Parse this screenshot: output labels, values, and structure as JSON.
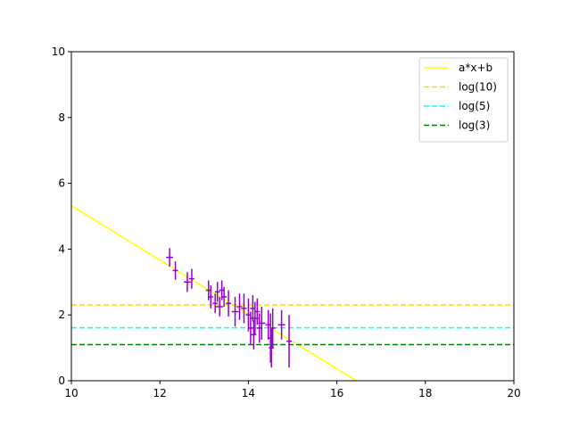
{
  "chart_data": {
    "type": "scatter",
    "title": "",
    "xlabel": "",
    "ylabel": "",
    "xlim": [
      10,
      20
    ],
    "ylim": [
      0,
      10
    ],
    "x_ticks": [
      10,
      12,
      14,
      16,
      18,
      20
    ],
    "y_ticks": [
      0,
      2,
      4,
      6,
      8,
      10
    ],
    "grid": false,
    "legend_position": "top-right",
    "series": [
      {
        "name": "a*x+b",
        "kind": "line",
        "style": "solid",
        "color": "#ffff00",
        "points": [
          [
            10,
            5.32
          ],
          [
            16.44,
            0
          ]
        ]
      },
      {
        "name": "log(10)",
        "kind": "hline",
        "style": "dashed",
        "color": "#ffd700",
        "y": 2.303
      },
      {
        "name": "log(5)",
        "kind": "hline",
        "style": "dashed",
        "color": "#00ffff",
        "y": 1.609
      },
      {
        "name": "log(3)",
        "kind": "hline",
        "style": "dashed",
        "color": "#008000",
        "y": 1.099
      }
    ],
    "errorbar_color": "#9400d3",
    "errorbar_points": [
      {
        "x": 12.22,
        "y": 3.75,
        "xerr": 0.08,
        "yerr": 0.28
      },
      {
        "x": 12.35,
        "y": 3.35,
        "xerr": 0.06,
        "yerr": 0.28
      },
      {
        "x": 12.62,
        "y": 3.0,
        "xerr": 0.08,
        "yerr": 0.3
      },
      {
        "x": 12.72,
        "y": 3.1,
        "xerr": 0.06,
        "yerr": 0.3
      },
      {
        "x": 13.1,
        "y": 2.75,
        "xerr": 0.06,
        "yerr": 0.3
      },
      {
        "x": 13.15,
        "y": 2.55,
        "xerr": 0.06,
        "yerr": 0.35
      },
      {
        "x": 13.25,
        "y": 2.35,
        "xerr": 0.06,
        "yerr": 0.3
      },
      {
        "x": 13.3,
        "y": 2.7,
        "xerr": 0.06,
        "yerr": 0.3
      },
      {
        "x": 13.35,
        "y": 2.25,
        "xerr": 0.08,
        "yerr": 0.3
      },
      {
        "x": 13.4,
        "y": 2.75,
        "xerr": 0.06,
        "yerr": 0.3
      },
      {
        "x": 13.45,
        "y": 2.55,
        "xerr": 0.06,
        "yerr": 0.3
      },
      {
        "x": 13.55,
        "y": 2.35,
        "xerr": 0.06,
        "yerr": 0.4
      },
      {
        "x": 13.7,
        "y": 2.1,
        "xerr": 0.08,
        "yerr": 0.45
      },
      {
        "x": 13.8,
        "y": 2.25,
        "xerr": 0.06,
        "yerr": 0.4
      },
      {
        "x": 13.9,
        "y": 2.2,
        "xerr": 0.06,
        "yerr": 0.45
      },
      {
        "x": 14.0,
        "y": 2.0,
        "xerr": 0.06,
        "yerr": 0.5
      },
      {
        "x": 14.05,
        "y": 1.6,
        "xerr": 0.06,
        "yerr": 0.5
      },
      {
        "x": 14.1,
        "y": 2.2,
        "xerr": 0.06,
        "yerr": 0.4
      },
      {
        "x": 14.12,
        "y": 1.4,
        "xerr": 0.06,
        "yerr": 0.45
      },
      {
        "x": 14.15,
        "y": 1.9,
        "xerr": 0.1,
        "yerr": 0.5
      },
      {
        "x": 14.2,
        "y": 2.1,
        "xerr": 0.06,
        "yerr": 0.4
      },
      {
        "x": 14.25,
        "y": 1.6,
        "xerr": 0.06,
        "yerr": 0.45
      },
      {
        "x": 14.3,
        "y": 1.75,
        "xerr": 0.08,
        "yerr": 0.5
      },
      {
        "x": 14.45,
        "y": 1.7,
        "xerr": 0.06,
        "yerr": 0.45
      },
      {
        "x": 14.5,
        "y": 1.3,
        "xerr": 0.06,
        "yerr": 0.75
      },
      {
        "x": 14.52,
        "y": 1.0,
        "xerr": 0.06,
        "yerr": 0.6
      },
      {
        "x": 14.55,
        "y": 1.6,
        "xerr": 0.06,
        "yerr": 0.6
      },
      {
        "x": 14.75,
        "y": 1.7,
        "xerr": 0.08,
        "yerr": 0.45
      },
      {
        "x": 14.92,
        "y": 1.2,
        "xerr": 0.06,
        "yerr": 0.8
      }
    ]
  }
}
